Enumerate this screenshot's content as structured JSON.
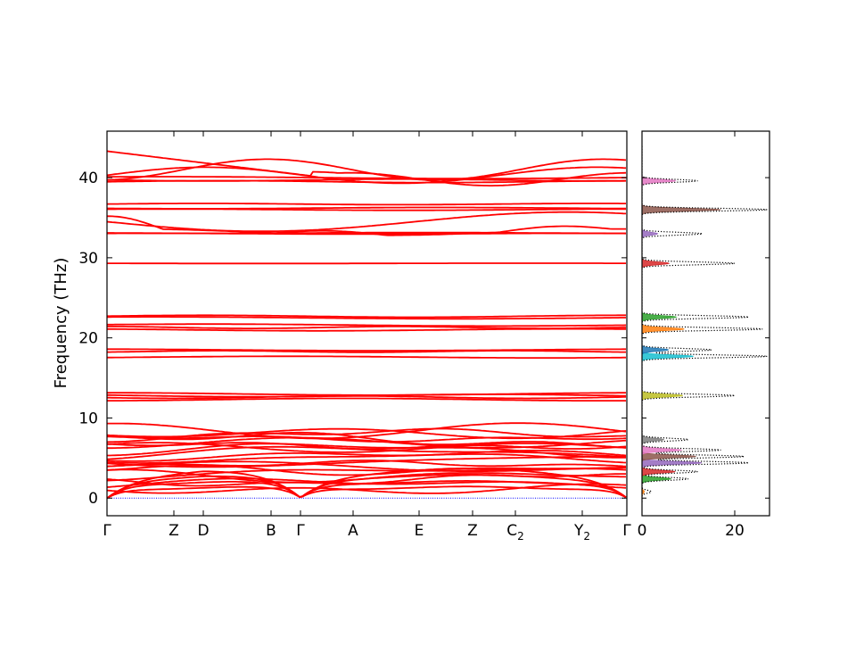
{
  "chart_data": [
    {
      "type": "line",
      "name": "phonon-band-structure",
      "ylabel": "Frequency (THz)",
      "xlabel": "",
      "ylim": [
        -2.2,
        45.8
      ],
      "yticks": [
        0,
        10,
        20,
        30,
        40
      ],
      "kpath_labels": [
        "Γ",
        "Z",
        "D",
        "B",
        "Γ",
        "A",
        "E",
        "Z",
        "C",
        "Y",
        "Γ"
      ],
      "kpath_subscripts": [
        "",
        "",
        "",
        "",
        "",
        "",
        "",
        "",
        "2",
        "2",
        ""
      ],
      "band_color": "#ff0000",
      "zero_line_color": "#0000ff",
      "band_groups": [
        {
          "range": [
            0,
            9
          ],
          "note": "dense acoustic/low-frequency manifold"
        },
        {
          "range": [
            12.2,
            13.2
          ]
        },
        {
          "range": [
            17.5,
            18.6
          ]
        },
        {
          "range": [
            21,
            22.8
          ]
        },
        {
          "range": [
            29.3,
            29.3
          ]
        },
        {
          "range": [
            33,
            35
          ]
        },
        {
          "range": [
            36,
            36.8
          ]
        },
        {
          "range": [
            39.4,
            43.3
          ]
        }
      ]
    },
    {
      "type": "line",
      "name": "phonon-density-of-states",
      "xticks": [
        0,
        20
      ],
      "xlim": [
        0,
        27.5
      ],
      "ylim": [
        -2.2,
        45.8
      ],
      "total_dos_color": "#000000",
      "peaks": [
        {
          "freq": 0.8,
          "dos": 2
        },
        {
          "freq": 2.4,
          "dos": 10
        },
        {
          "freq": 3.3,
          "dos": 12
        },
        {
          "freq": 4.4,
          "dos": 23
        },
        {
          "freq": 5.2,
          "dos": 22
        },
        {
          "freq": 6.0,
          "dos": 17
        },
        {
          "freq": 7.3,
          "dos": 10
        },
        {
          "freq": 12.8,
          "dos": 20
        },
        {
          "freq": 17.7,
          "dos": 27
        },
        {
          "freq": 18.5,
          "dos": 15
        },
        {
          "freq": 21.1,
          "dos": 26
        },
        {
          "freq": 22.6,
          "dos": 23
        },
        {
          "freq": 29.3,
          "dos": 20
        },
        {
          "freq": 33.0,
          "dos": 13
        },
        {
          "freq": 36.0,
          "dos": 27
        },
        {
          "freq": 39.6,
          "dos": 12
        }
      ],
      "projection_colors": [
        "#ff7f0e",
        "#2ca02c",
        "#d62728",
        "#9467bd",
        "#8c564b",
        "#e377c2",
        "#7f7f7f",
        "#bcbd22",
        "#17becf",
        "#1f77b4"
      ]
    }
  ]
}
